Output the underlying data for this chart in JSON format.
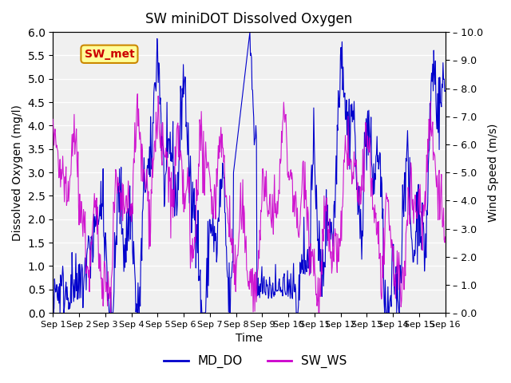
{
  "title": "SW miniDOT Dissolved Oxygen",
  "xlabel": "Time",
  "ylabel_left": "Dissolved Oxygen (mg/l)",
  "ylabel_right": "Wind Speed (m/s)",
  "ylim_left": [
    0.0,
    6.0
  ],
  "ylim_right": [
    0.0,
    10.0
  ],
  "yticks_left": [
    0.0,
    0.5,
    1.0,
    1.5,
    2.0,
    2.5,
    3.0,
    3.5,
    4.0,
    4.5,
    5.0,
    5.5,
    6.0
  ],
  "yticks_right": [
    0.0,
    1.0,
    2.0,
    3.0,
    4.0,
    5.0,
    6.0,
    7.0,
    8.0,
    9.0,
    10.0
  ],
  "xtick_labels": [
    "Sep 1",
    "Sep 2",
    "Sep 3",
    "Sep 4",
    "Sep 5",
    "Sep 6",
    "Sep 7",
    "Sep 8",
    "Sep 9",
    "Sep 10",
    "Sep 11",
    "Sep 12",
    "Sep 13",
    "Sep 14",
    "Sep 15",
    "Sep 16"
  ],
  "md_do_color": "#0000CC",
  "sw_ws_color": "#CC00CC",
  "legend_labels": [
    "MD_DO",
    "SW_WS"
  ],
  "annotation_text": "SW_met",
  "annotation_color": "#CC0000",
  "annotation_bg": "#FFFF99",
  "annotation_border": "#CC8800",
  "background_color": "#f0f0f0",
  "grid_color": "white",
  "n_points": 720
}
